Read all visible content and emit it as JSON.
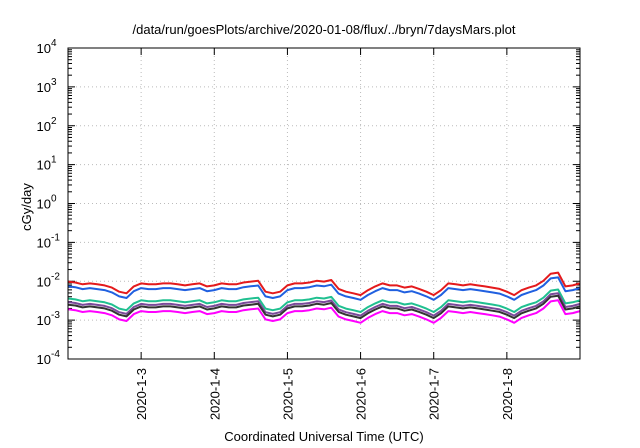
{
  "chart_data": {
    "type": "line",
    "title": "/data/run/goesPlots/archive/2020-01-08/flux/../bryn/7daysMars.plot",
    "xlabel": "Coordinated Universal Time (UTC)",
    "ylabel": "cGy/day",
    "yscale": "log",
    "ylim": [
      0.0001,
      10000
    ],
    "xlim": [
      1.0,
      8.0
    ],
    "x_unit": "days (January 2020; 1.0 = 2020-01-02 00:00 UTC)",
    "grid": true,
    "legend": "none",
    "y_ticks": [
      {
        "value": 0.0001,
        "base": "10",
        "exp": "-4"
      },
      {
        "value": 0.001,
        "base": "10",
        "exp": "-3"
      },
      {
        "value": 0.01,
        "base": "10",
        "exp": "-2"
      },
      {
        "value": 0.1,
        "base": "10",
        "exp": "-1"
      },
      {
        "value": 1,
        "base": "10",
        "exp": "0"
      },
      {
        "value": 10,
        "base": "10",
        "exp": "1"
      },
      {
        "value": 100,
        "base": "10",
        "exp": "2"
      },
      {
        "value": 1000,
        "base": "10",
        "exp": "3"
      },
      {
        "value": 10000,
        "base": "10",
        "exp": "4"
      }
    ],
    "x_ticks": [
      {
        "value": 2.0,
        "label": "2020-1-3"
      },
      {
        "value": 3.0,
        "label": "2020-1-4"
      },
      {
        "value": 4.0,
        "label": "2020-1-5"
      },
      {
        "value": 5.0,
        "label": "2020-1-6"
      },
      {
        "value": 6.0,
        "label": "2020-1-7"
      },
      {
        "value": 7.0,
        "label": "2020-1-8"
      }
    ],
    "x": [
      1.0,
      1.1,
      1.2,
      1.3,
      1.4,
      1.5,
      1.6,
      1.7,
      1.8,
      1.9,
      2.0,
      2.1,
      2.2,
      2.3,
      2.4,
      2.5,
      2.6,
      2.7,
      2.8,
      2.9,
      3.0,
      3.1,
      3.2,
      3.3,
      3.4,
      3.5,
      3.6,
      3.7,
      3.8,
      3.9,
      4.0,
      4.1,
      4.2,
      4.3,
      4.4,
      4.5,
      4.6,
      4.7,
      4.8,
      4.9,
      5.0,
      5.1,
      5.2,
      5.3,
      5.4,
      5.5,
      5.6,
      5.7,
      5.8,
      5.9,
      6.0,
      6.1,
      6.2,
      6.3,
      6.4,
      6.5,
      6.6,
      6.7,
      6.8,
      6.9,
      7.0,
      7.1,
      7.2,
      7.3,
      7.4,
      7.5,
      7.6,
      7.7,
      7.8,
      7.9,
      8.0
    ],
    "series_base": [
      1.0,
      0.95,
      0.85,
      0.9,
      0.85,
      0.8,
      0.7,
      0.55,
      0.5,
      0.75,
      0.9,
      0.85,
      0.85,
      0.9,
      0.9,
      0.85,
      0.8,
      0.85,
      0.9,
      0.75,
      0.8,
      0.9,
      0.85,
      0.85,
      0.95,
      1.0,
      1.05,
      0.55,
      0.5,
      0.55,
      0.8,
      0.9,
      0.9,
      0.95,
      1.05,
      1.0,
      1.1,
      0.65,
      0.55,
      0.5,
      0.45,
      0.6,
      0.75,
      0.9,
      0.8,
      0.8,
      0.7,
      0.75,
      0.65,
      0.55,
      0.45,
      0.6,
      0.9,
      0.85,
      0.8,
      0.85,
      0.8,
      0.75,
      0.7,
      0.65,
      0.55,
      0.45,
      0.6,
      0.7,
      0.8,
      1.05,
      1.6,
      1.7,
      0.75,
      0.8,
      0.9
    ],
    "series": [
      {
        "color": "#e41a1c",
        "scale": 0.0098
      },
      {
        "color": "#2060e0",
        "scale": 0.0074
      },
      {
        "color": "#20c090",
        "scale": 0.0036
      },
      {
        "color": "#7a4a9a",
        "scale": 0.0029
      },
      {
        "color": "#333333",
        "scale": 0.0025
      },
      {
        "color": "#ff00ff",
        "scale": 0.0019
      }
    ]
  }
}
